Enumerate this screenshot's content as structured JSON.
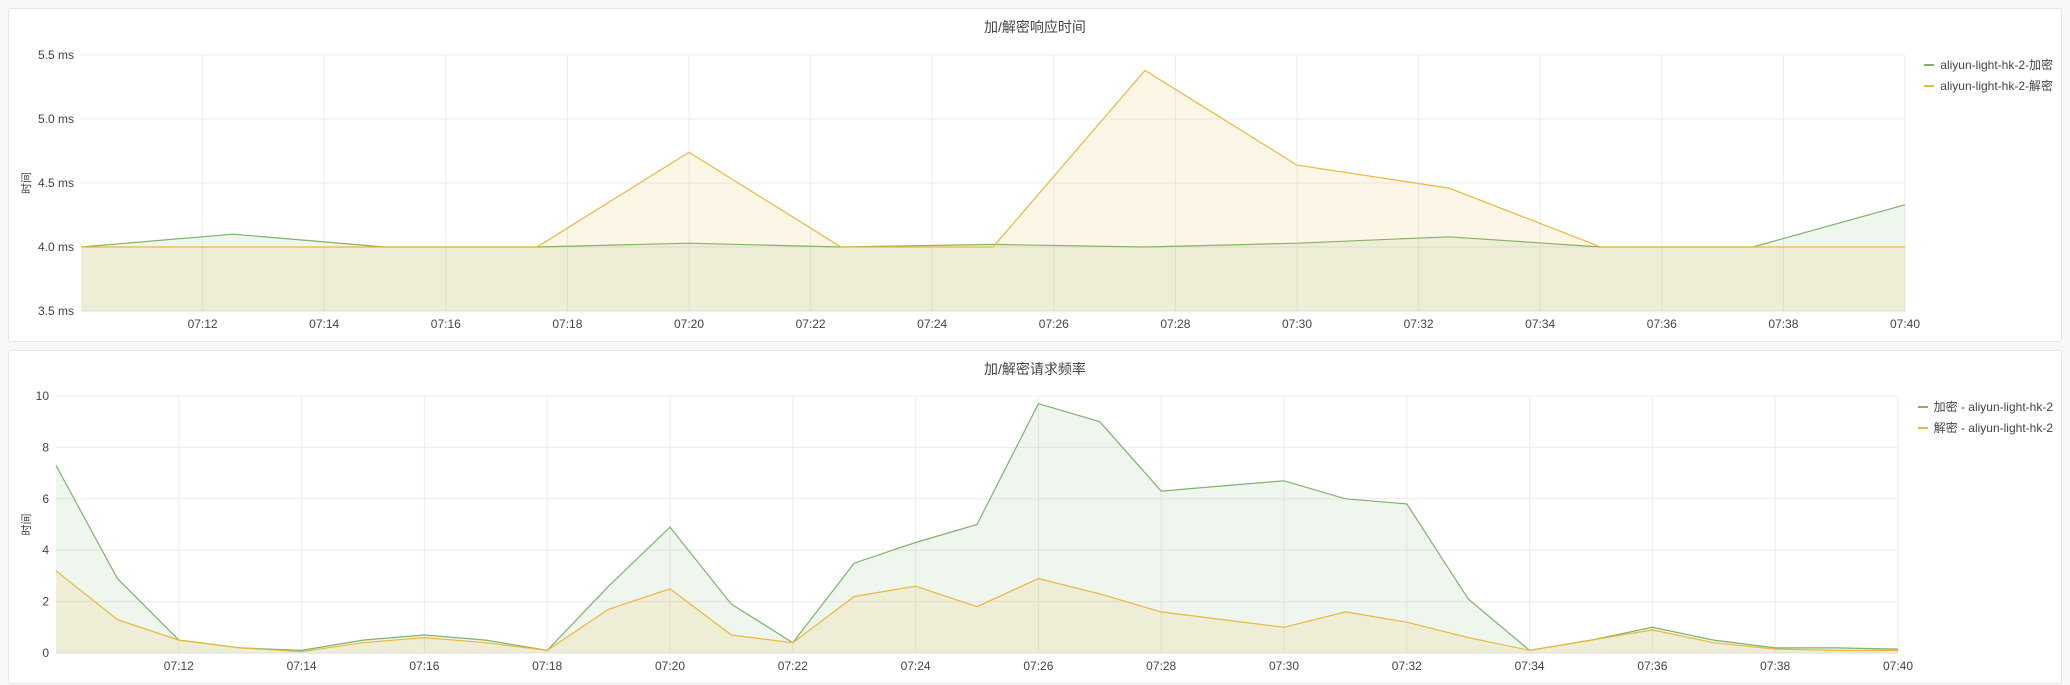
{
  "colors": {
    "series_a": "#7eb26d",
    "series_b": "#eab839"
  },
  "chart_data": [
    {
      "type": "area",
      "title": "加/解密响应时间",
      "ylabel": "时间",
      "ylim": [
        3.5,
        5.5
      ],
      "yticks": [
        3.5,
        4.0,
        4.5,
        5.0,
        5.5
      ],
      "ytick_labels": [
        "3.5 ms",
        "4.0 ms",
        "4.5 ms",
        "5.0 ms",
        "5.5 ms"
      ],
      "xlim": [
        "07:10",
        "07:40"
      ],
      "xtick_labels": [
        "07:12",
        "07:14",
        "07:16",
        "07:18",
        "07:20",
        "07:22",
        "07:24",
        "07:26",
        "07:28",
        "07:30",
        "07:32",
        "07:34",
        "07:36",
        "07:38",
        "07:40"
      ],
      "legend_position": "right",
      "series": [
        {
          "name": "aliyun-light-hk-2-加密",
          "color": "#7eb26d",
          "x": [
            "07:10",
            "07:12:30",
            "07:15",
            "07:17:30",
            "07:20",
            "07:22:30",
            "07:25",
            "07:27:30",
            "07:30",
            "07:32:30",
            "07:35",
            "07:37:30",
            "07:40"
          ],
          "y": [
            4.0,
            4.1,
            4.0,
            4.0,
            4.03,
            4.0,
            4.02,
            4.0,
            4.03,
            4.08,
            4.0,
            4.0,
            4.33
          ]
        },
        {
          "name": "aliyun-light-hk-2-解密",
          "color": "#eab839",
          "x": [
            "07:10",
            "07:12:30",
            "07:15",
            "07:17:30",
            "07:20",
            "07:22:30",
            "07:25",
            "07:27:30",
            "07:30",
            "07:32:30",
            "07:35",
            "07:37:30",
            "07:40"
          ],
          "y": [
            4.0,
            4.0,
            4.0,
            4.0,
            4.74,
            4.0,
            4.0,
            5.38,
            4.64,
            4.46,
            4.0,
            4.0,
            4.0
          ]
        }
      ]
    },
    {
      "type": "area",
      "title": "加/解密请求频率",
      "ylabel": "时间",
      "ylim": [
        0,
        10
      ],
      "yticks": [
        0,
        2,
        4,
        6,
        8,
        10
      ],
      "ytick_labels": [
        "0",
        "2",
        "4",
        "6",
        "8",
        "10"
      ],
      "xlim": [
        "07:10",
        "07:40"
      ],
      "xtick_labels": [
        "07:12",
        "07:14",
        "07:16",
        "07:18",
        "07:20",
        "07:22",
        "07:24",
        "07:26",
        "07:28",
        "07:30",
        "07:32",
        "07:34",
        "07:36",
        "07:38",
        "07:40"
      ],
      "legend_position": "right",
      "series": [
        {
          "name": "加密 - aliyun-light-hk-2",
          "color": "#7eb26d",
          "x": [
            "07:10",
            "07:11",
            "07:12",
            "07:13",
            "07:14",
            "07:15",
            "07:16",
            "07:17",
            "07:18",
            "07:19",
            "07:20",
            "07:21",
            "07:22",
            "07:23",
            "07:24",
            "07:25",
            "07:26",
            "07:27",
            "07:28",
            "07:29",
            "07:30",
            "07:31",
            "07:32",
            "07:33",
            "07:34",
            "07:35",
            "07:36",
            "07:37",
            "07:38",
            "07:39",
            "07:40"
          ],
          "y": [
            7.3,
            2.9,
            0.5,
            0.2,
            0.1,
            0.5,
            0.7,
            0.5,
            0.1,
            2.6,
            4.9,
            1.9,
            0.4,
            3.5,
            4.3,
            5.0,
            9.7,
            9.0,
            6.3,
            6.5,
            6.7,
            6.0,
            5.8,
            2.1,
            0.1,
            0.5,
            1.0,
            0.5,
            0.2,
            0.2,
            0.15
          ]
        },
        {
          "name": "解密 - aliyun-light-hk-2",
          "color": "#eab839",
          "x": [
            "07:10",
            "07:11",
            "07:12",
            "07:13",
            "07:14",
            "07:15",
            "07:16",
            "07:17",
            "07:18",
            "07:19",
            "07:20",
            "07:21",
            "07:22",
            "07:23",
            "07:24",
            "07:25",
            "07:26",
            "07:27",
            "07:28",
            "07:29",
            "07:30",
            "07:31",
            "07:32",
            "07:33",
            "07:34",
            "07:35",
            "07:36",
            "07:37",
            "07:38",
            "07:39",
            "07:40"
          ],
          "y": [
            3.2,
            1.3,
            0.5,
            0.2,
            0.05,
            0.4,
            0.6,
            0.4,
            0.1,
            1.7,
            2.5,
            0.7,
            0.4,
            2.2,
            2.6,
            1.8,
            2.9,
            2.3,
            1.6,
            1.3,
            1.0,
            1.6,
            1.2,
            0.6,
            0.1,
            0.5,
            0.9,
            0.4,
            0.15,
            0.1,
            0.1
          ]
        }
      ]
    }
  ]
}
